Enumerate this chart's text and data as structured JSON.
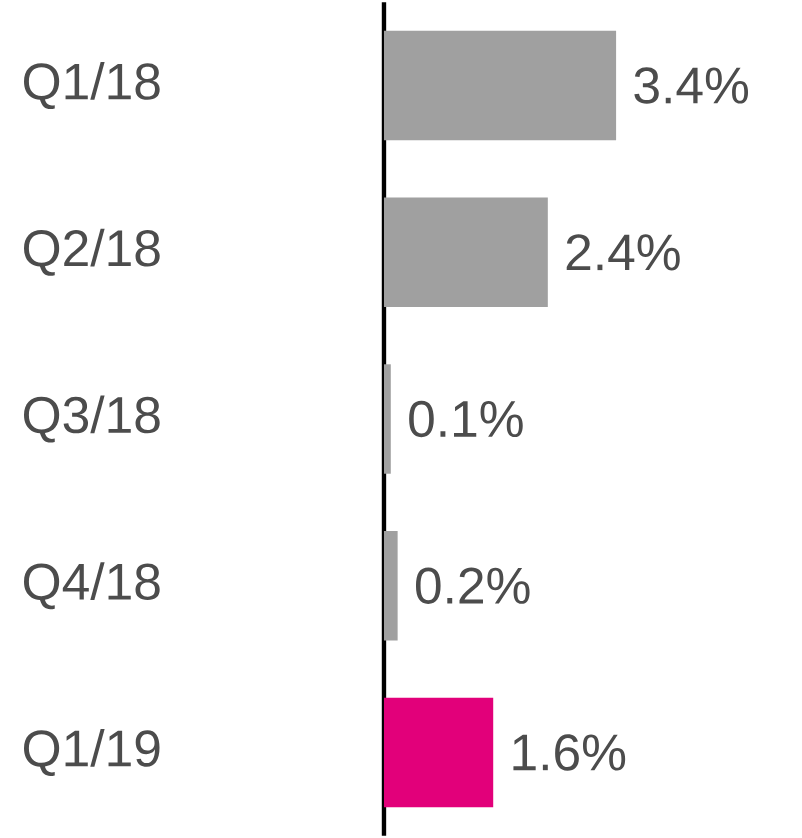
{
  "chart_data": {
    "type": "bar",
    "orientation": "horizontal",
    "categories": [
      "Q1/18",
      "Q2/18",
      "Q3/18",
      "Q4/18",
      "Q1/19"
    ],
    "values": [
      3.4,
      2.4,
      0.1,
      0.2,
      1.6
    ],
    "colors": [
      "#a0a0a0",
      "#a0a0a0",
      "#a0a0a0",
      "#a0a0a0",
      "#e2007a"
    ],
    "value_labels": [
      "3.4%",
      "2.4%",
      "0.1%",
      "0.2%",
      "1.6%"
    ]
  }
}
